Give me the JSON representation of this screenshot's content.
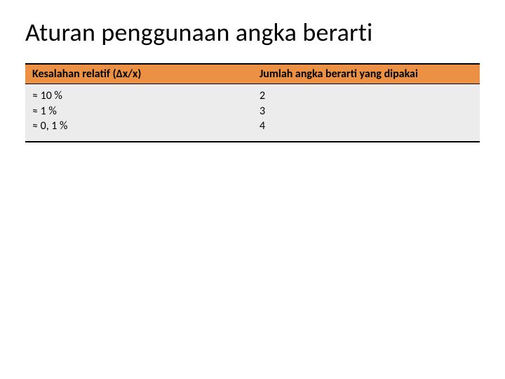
{
  "title": "Aturan penggunaan angka berarti",
  "table": {
    "columns": [
      "Kesalahan relatif (Δx/x)",
      "Jumlah angka berarti yang dipakai"
    ],
    "rows": [
      [
        "≈ 10 %",
        "2"
      ],
      [
        "≈ 1 %",
        "3"
      ],
      [
        "≈ 0, 1 %",
        "4"
      ]
    ],
    "header_bg": "#ec9044",
    "body_bg": "#ececec",
    "border_color": "#000000",
    "font_size": 16,
    "title_fontsize": 36
  }
}
